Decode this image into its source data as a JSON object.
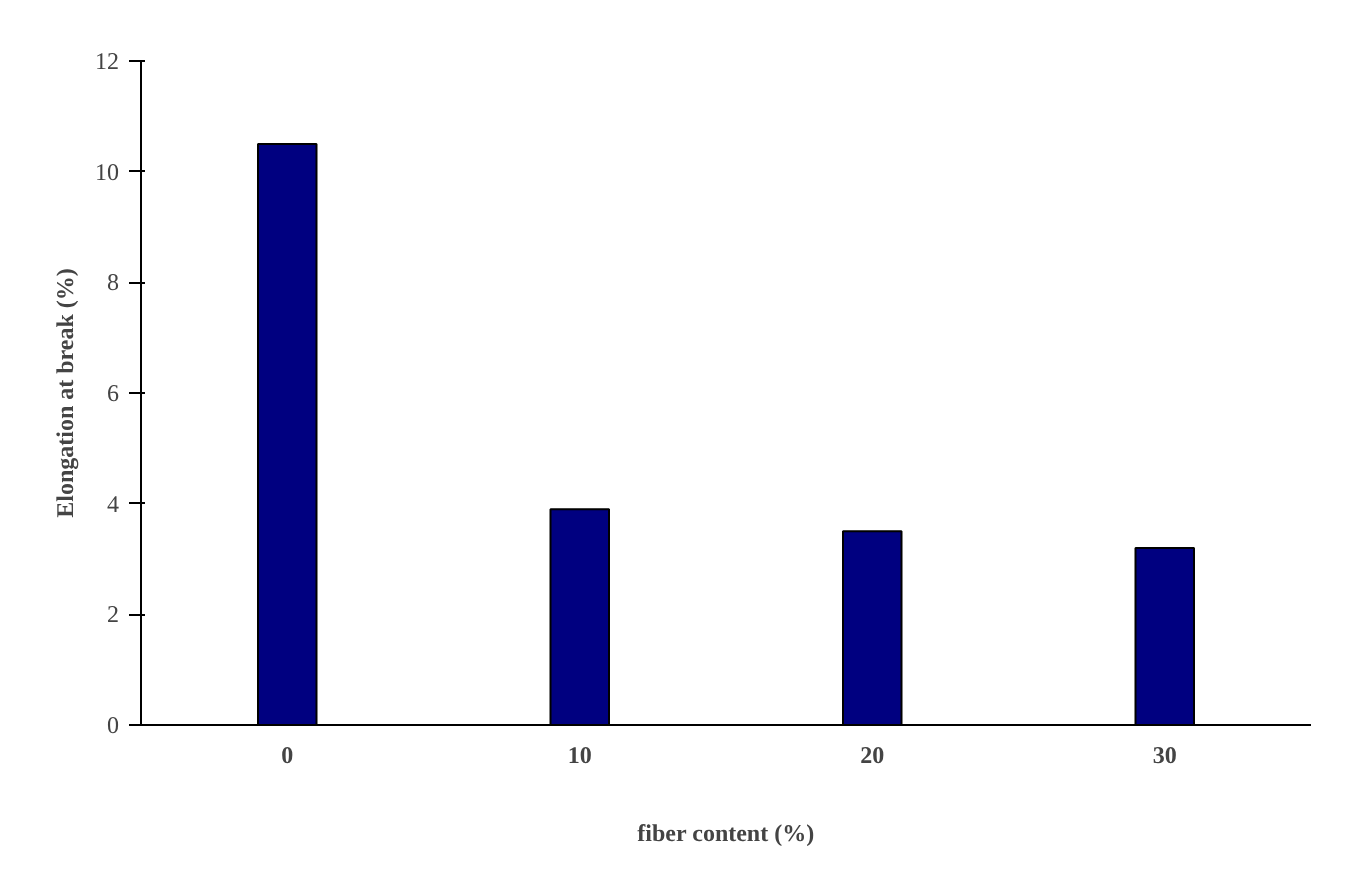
{
  "chart_data": {
    "type": "bar",
    "xlabel": "fiber content (%)",
    "ylabel": "Elongation at break (%)",
    "categories": [
      "0",
      "10",
      "20",
      "30"
    ],
    "values": [
      10.5,
      3.9,
      3.5,
      3.2
    ],
    "color": "#000080",
    "ylim": [
      0,
      12
    ],
    "yticks": [
      0,
      2,
      4,
      6,
      8,
      10,
      12
    ],
    "grid": false
  }
}
